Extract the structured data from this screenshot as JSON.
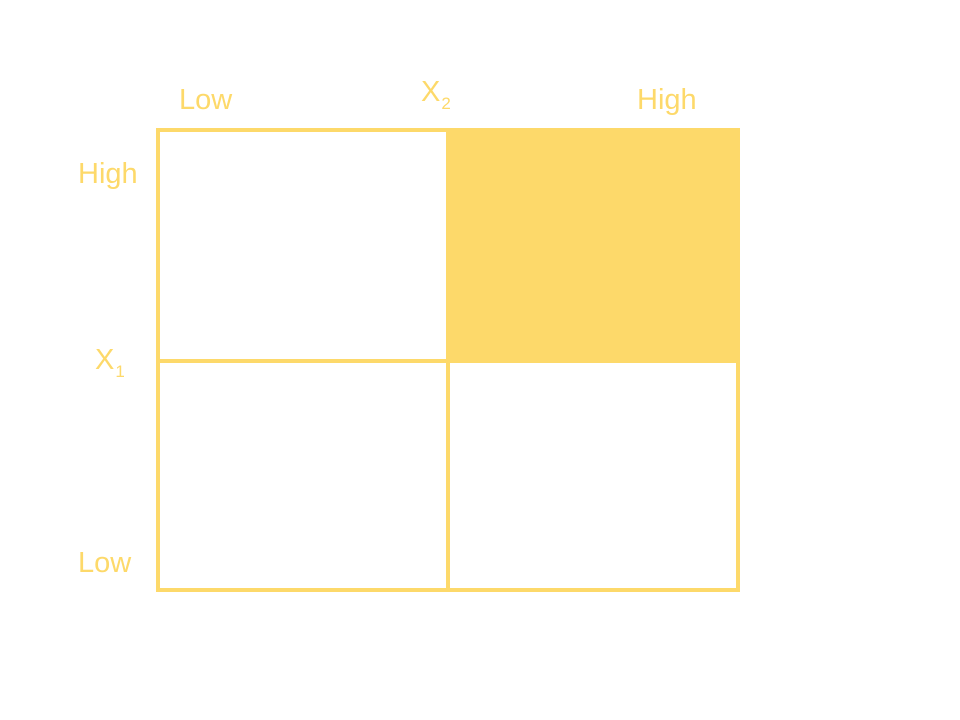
{
  "colors": {
    "accent": "#fdd96a",
    "background": "#ffffff"
  },
  "x2_axis": {
    "name": "X",
    "subscript": "2",
    "low_label": "Low",
    "high_label": "High"
  },
  "x1_axis": {
    "name": "X",
    "subscript": "1",
    "high_label": "High",
    "low_label": "Low"
  },
  "cells": [
    {
      "row": "high",
      "col": "low",
      "filled": false
    },
    {
      "row": "high",
      "col": "high",
      "filled": true
    },
    {
      "row": "low",
      "col": "low",
      "filled": false
    },
    {
      "row": "low",
      "col": "high",
      "filled": false
    }
  ]
}
